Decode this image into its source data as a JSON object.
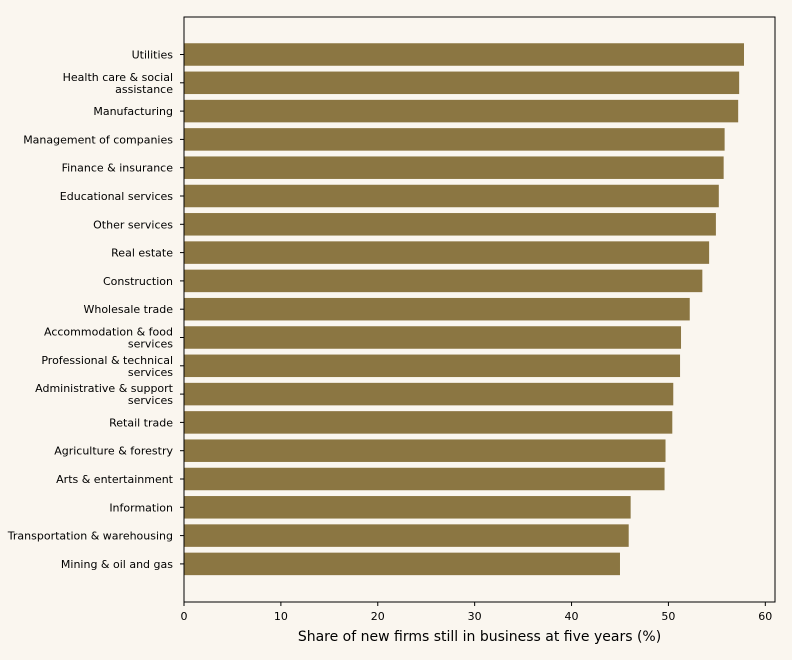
{
  "colors": {
    "background": "#faf6ef",
    "bar": "#8b7642",
    "axis": "#000000"
  },
  "chart_data": {
    "type": "bar",
    "orientation": "horizontal",
    "title": "",
    "xlabel": "Share of new firms still in business at five years (%)",
    "ylabel": "",
    "xlim": [
      0,
      61
    ],
    "xticks": [
      0,
      10,
      20,
      30,
      40,
      50,
      60
    ],
    "grid": false,
    "categories": [
      "Utilities",
      "Health care & social assistance",
      "Manufacturing",
      "Management of companies",
      "Finance & insurance",
      "Educational services",
      "Other services",
      "Real estate",
      "Construction",
      "Wholesale trade",
      "Accommodation & food services",
      "Professional & technical services",
      "Administrative & support services",
      "Retail trade",
      "Agriculture & forestry",
      "Arts & entertainment",
      "Information",
      "Transportation & warehousing",
      "Mining & oil and gas"
    ],
    "values": [
      57.8,
      57.3,
      57.2,
      55.8,
      55.7,
      55.2,
      54.9,
      54.2,
      53.5,
      52.2,
      51.3,
      51.2,
      50.5,
      50.4,
      49.7,
      49.6,
      46.1,
      45.9,
      45.0
    ]
  }
}
